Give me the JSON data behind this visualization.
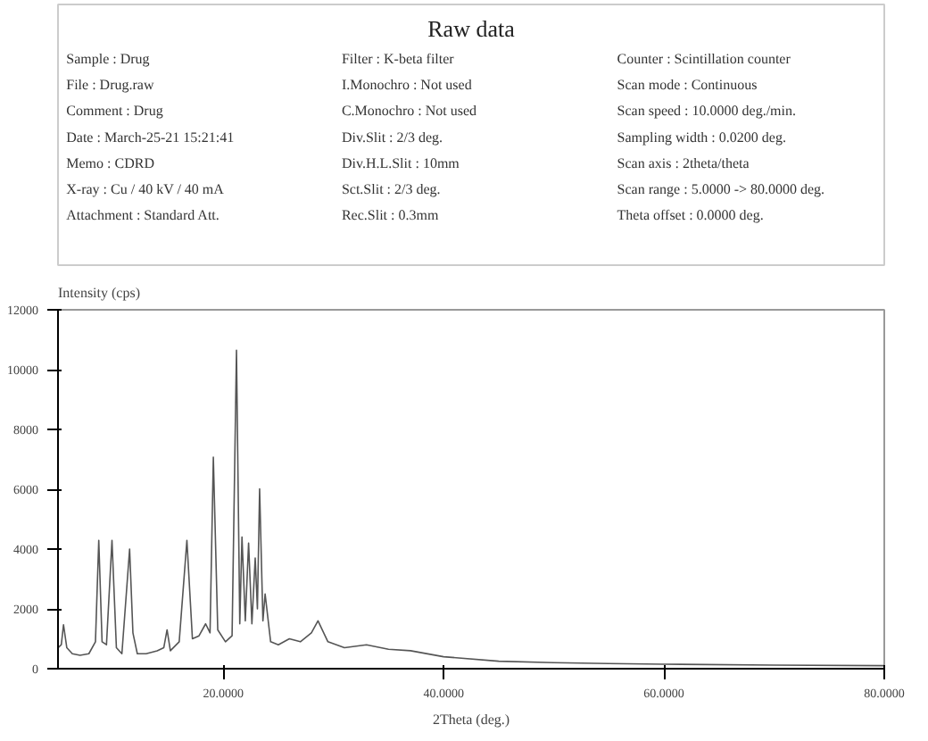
{
  "chart_data": {
    "type": "line",
    "title": "Raw data",
    "annotations": [
      "Sample : Drug",
      "File : Drug.raw",
      "Comment : Drug",
      "Date : March-25-21 15:21:41",
      "Memo : CDRD",
      "X-ray : Cu / 40 kV / 40 mA",
      "Attachment : Standard Att.",
      "Filter : K-beta filter",
      "I.Monochro : Not used",
      "C.Monochro : Not used",
      "Div.Slit : 2/3 deg.",
      "Div.H.L.Slit : 10mm",
      "Sct.Slit : 2/3 deg.",
      "Rec.Slit : 0.3mm",
      "Counter : Scintillation counter",
      "Scan mode : Continuous",
      "Scan speed : 10.0000 deg./min.",
      "Sampling width : 0.0200 deg.",
      "Scan axis : 2theta/theta",
      "Scan range : 5.0000 -> 80.0000 deg.",
      "Theta offset : 0.0000 deg."
    ],
    "xlabel": "2Theta (deg.)",
    "ylabel": "Intensity (cps)",
    "xlim": [
      5,
      80
    ],
    "ylim": [
      0,
      12000
    ],
    "xticks": [
      {
        "value": 20,
        "label": "20.0000"
      },
      {
        "value": 40,
        "label": "40.0000"
      },
      {
        "value": 60,
        "label": "60.0000"
      },
      {
        "value": 80,
        "label": "80.0000"
      }
    ],
    "yticks": [
      0,
      2000,
      4000,
      6000,
      8000,
      10000,
      12000
    ],
    "grid": false,
    "series": [
      {
        "color": "#555555",
        "x": [
          5.0,
          5.3,
          5.5,
          5.8,
          6.3,
          7.0,
          7.8,
          8.4,
          8.7,
          9.0,
          9.4,
          9.9,
          10.3,
          10.8,
          11.5,
          11.8,
          12.2,
          13.0,
          14.0,
          14.6,
          14.9,
          15.2,
          16.0,
          16.7,
          17.2,
          17.8,
          18.4,
          18.8,
          19.1,
          19.5,
          20.2,
          20.8,
          21.2,
          21.5,
          21.7,
          22.0,
          22.3,
          22.6,
          22.9,
          23.1,
          23.3,
          23.6,
          23.8,
          24.3,
          25.0,
          26.0,
          27.0,
          28.0,
          28.6,
          29.5,
          31.0,
          33.0,
          35.0,
          37.0,
          40.0,
          45.0,
          50.0,
          55.0,
          60.0,
          70.0,
          80.0
        ],
        "values": [
          700,
          800,
          1470,
          700,
          500,
          450,
          500,
          900,
          4290,
          900,
          800,
          4290,
          700,
          500,
          4000,
          1200,
          500,
          500,
          600,
          700,
          1300,
          600,
          900,
          4290,
          1000,
          1100,
          1500,
          1200,
          7070,
          1300,
          900,
          1100,
          10650,
          1500,
          4400,
          1600,
          4200,
          1500,
          3700,
          2000,
          6010,
          1600,
          2500,
          900,
          800,
          1000,
          900,
          1200,
          1600,
          900,
          700,
          800,
          650,
          600,
          400,
          250,
          200,
          170,
          150,
          120,
          100
        ]
      }
    ]
  }
}
